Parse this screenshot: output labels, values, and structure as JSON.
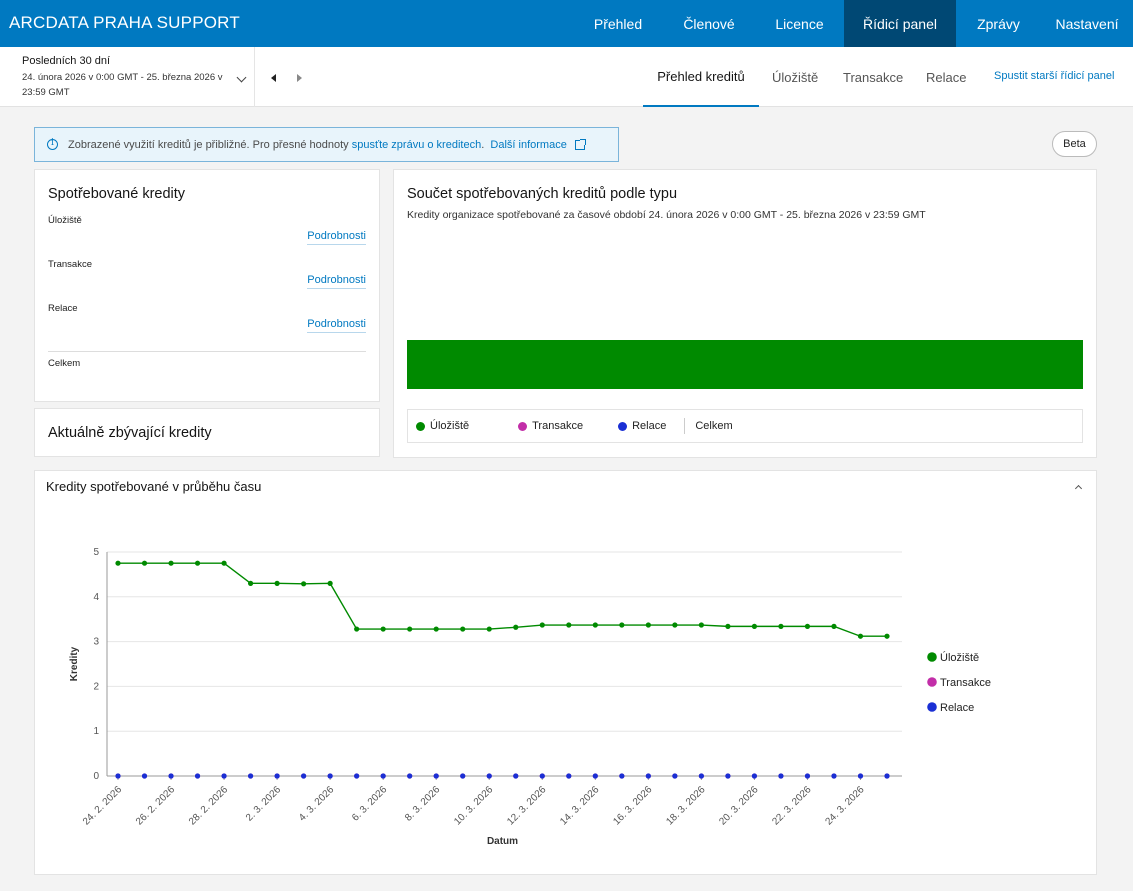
{
  "app": {
    "brand": "ARCDATA PRAHA SUPPORT"
  },
  "nav": {
    "items": [
      {
        "label": "Přehled",
        "active": false
      },
      {
        "label": "Členové",
        "active": false
      },
      {
        "label": "Licence",
        "active": false
      },
      {
        "label": "Řídicí panel",
        "active": true
      },
      {
        "label": "Zprávy",
        "active": false
      },
      {
        "label": "Nastavení",
        "active": false
      }
    ]
  },
  "date_range": {
    "label": "Posledních 30 dní",
    "range": "24. února 2026 v 0:00 GMT - 25. března 2026 v 23:59 GMT"
  },
  "subtabs": {
    "items": [
      {
        "label": "Přehled kreditů",
        "active": true
      },
      {
        "label": "Úložiště",
        "active": false
      },
      {
        "label": "Transakce",
        "active": false
      },
      {
        "label": "Relace",
        "active": false
      }
    ],
    "legacy_link": "Spustit starší řídicí panel"
  },
  "notice": {
    "text": "Zobrazené využití kreditů je přibližné. Pro přesné hodnoty",
    "link": "spusťte zprávu o kreditech",
    "text_end": ".",
    "more": "Další informace"
  },
  "beta": "Beta",
  "consumed": {
    "title": "Spotřebované kredity",
    "rows": [
      {
        "label": "Úložiště",
        "link": "Podrobnosti"
      },
      {
        "label": "Transakce",
        "link": "Podrobnosti"
      },
      {
        "label": "Relace",
        "link": "Podrobnosti"
      }
    ],
    "total_label": "Celkem"
  },
  "remaining": {
    "title": "Aktuálně zbývající kredity"
  },
  "by_type": {
    "title": "Součet spotřebovaných kreditů podle typu",
    "subtitle": "Kredity organizace spotřebované za časové období 24. února 2026 v 0:00 GMT - 25. března 2026 v 23:59 GMT",
    "bar_color": "#008a00",
    "legend": [
      {
        "label": "Úložiště",
        "color": "#008a00"
      },
      {
        "label": "Transakce",
        "color": "#c22ea8"
      },
      {
        "label": "Relace",
        "color": "#1a2fd4"
      }
    ],
    "total_label": "Celkem"
  },
  "over_time": {
    "title": "Kredity spotřebované v průběhu času"
  },
  "chart_data": {
    "type": "line",
    "xlabel": "Datum",
    "ylabel": "Kredity",
    "ylim": [
      0,
      5
    ],
    "yticks": [
      0,
      1,
      2,
      3,
      4,
      5
    ],
    "x": [
      "24. 2. 2026",
      "25. 2. 2026",
      "26. 2. 2026",
      "27. 2. 2026",
      "28. 2. 2026",
      "1. 3. 2026",
      "2. 3. 2026",
      "3. 3. 2026",
      "4. 3. 2026",
      "5. 3. 2026",
      "6. 3. 2026",
      "7. 3. 2026",
      "8. 3. 2026",
      "9. 3. 2026",
      "10. 3. 2026",
      "11. 3. 2026",
      "12. 3. 2026",
      "13. 3. 2026",
      "14. 3. 2026",
      "15. 3. 2026",
      "16. 3. 2026",
      "17. 3. 2026",
      "18. 3. 2026",
      "19. 3. 2026",
      "20. 3. 2026",
      "21. 3. 2026",
      "22. 3. 2026",
      "23. 3. 2026",
      "24. 3. 2026",
      "25. 3. 2026"
    ],
    "x_tick_labels": [
      "24. 2. 2026",
      "26. 2. 2026",
      "28. 2. 2026",
      "2. 3. 2026",
      "4. 3. 2026",
      "6. 3. 2026",
      "8. 3. 2026",
      "10. 3. 2026",
      "12. 3. 2026",
      "14. 3. 2026",
      "16. 3. 2026",
      "18. 3. 2026",
      "20. 3. 2026",
      "22. 3. 2026",
      "24. 3. 2026"
    ],
    "series": [
      {
        "name": "Úložiště",
        "color": "#008a00",
        "values": [
          4.75,
          4.75,
          4.75,
          4.75,
          4.75,
          4.3,
          4.3,
          4.29,
          4.3,
          3.28,
          3.28,
          3.28,
          3.28,
          3.28,
          3.28,
          3.32,
          3.37,
          3.37,
          3.37,
          3.37,
          3.37,
          3.37,
          3.37,
          3.34,
          3.34,
          3.34,
          3.34,
          3.34,
          3.12,
          3.12
        ]
      },
      {
        "name": "Transakce",
        "color": "#c22ea8",
        "values": [
          0,
          0,
          0,
          0,
          0,
          0,
          0,
          0,
          0,
          0,
          0,
          0,
          0,
          0,
          0,
          0,
          0,
          0,
          0,
          0,
          0,
          0,
          0,
          0,
          0,
          0,
          0,
          0,
          0,
          0
        ]
      },
      {
        "name": "Relace",
        "color": "#1a2fd4",
        "values": [
          0,
          0,
          0,
          0,
          0,
          0,
          0,
          0,
          0,
          0,
          0,
          0,
          0,
          0,
          0,
          0,
          0,
          0,
          0,
          0,
          0,
          0,
          0,
          0,
          0,
          0,
          0,
          0,
          0,
          0
        ]
      }
    ],
    "legend_position": "right",
    "grid": true
  }
}
